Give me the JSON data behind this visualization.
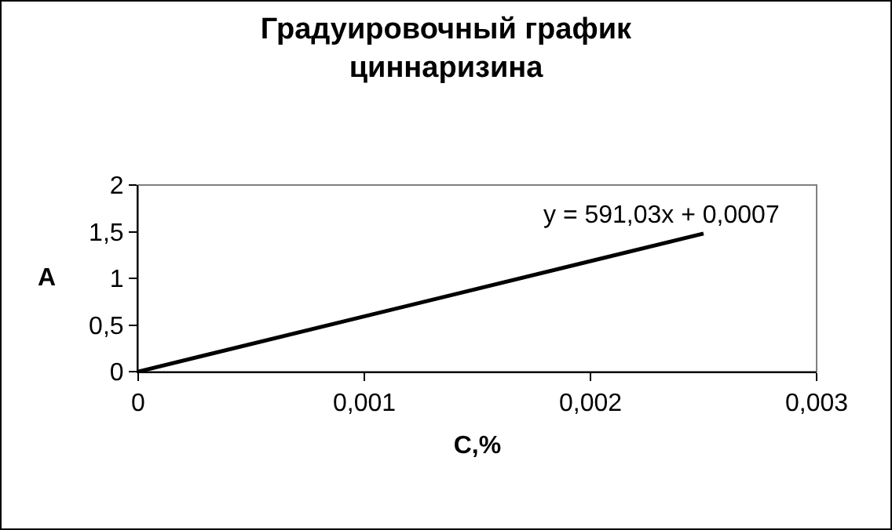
{
  "chart_data": {
    "type": "line",
    "title": "Градуировочный график\nциннаризина",
    "xlabel": "C,%",
    "ylabel": "A",
    "x": [
      0,
      0.0025
    ],
    "series": [
      {
        "color": "#000000",
        "values": [
          0,
          1.48
        ]
      }
    ],
    "xlim": [
      0,
      0.003
    ],
    "xticks": [
      0,
      {
        "value": 0.001,
        "label": "0,001"
      },
      {
        "value": 0.002,
        "label": "0,002"
      },
      {
        "value": 0.003,
        "label": "0,003"
      }
    ],
    "ylim": [
      0,
      2
    ],
    "yticks": [
      0,
      {
        "value": 0.5,
        "label": "0,5"
      },
      1,
      {
        "value": 1.5,
        "label": "1,5"
      },
      2
    ],
    "annotations": [
      "y = 591,03x + 0,0007"
    ],
    "grid": false,
    "marker": "none",
    "line_style": "solid"
  }
}
